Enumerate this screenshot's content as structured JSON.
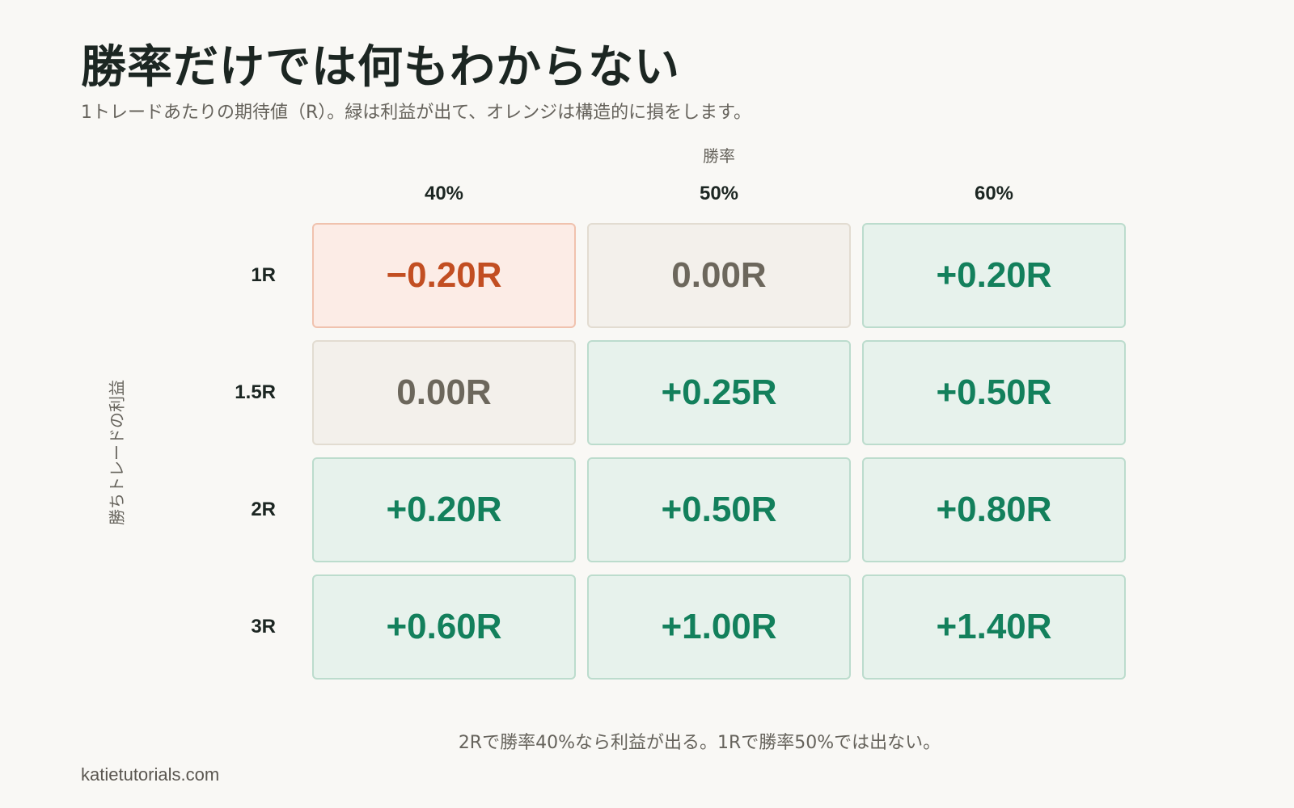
{
  "header": {
    "title": "勝率だけでは何もわからない",
    "subtitle": "1トレードあたりの期待値（R）。緑は利益が出て、オレンジは構造的に損をします。"
  },
  "chart_data": {
    "type": "heatmap",
    "title": "勝率だけでは何もわからない",
    "subtitle": "1トレードあたりの期待値（R）。緑は利益が出て、オレンジは構造的に損をします。",
    "xlabel": "勝率",
    "ylabel": "勝ちトレードの利益",
    "x_categories": [
      "40%",
      "50%",
      "60%"
    ],
    "y_categories": [
      "1R",
      "1.5R",
      "2R",
      "3R"
    ],
    "values": [
      [
        -0.2,
        0.0,
        0.2
      ],
      [
        0.0,
        0.25,
        0.5
      ],
      [
        0.2,
        0.5,
        0.8
      ],
      [
        0.6,
        1.0,
        1.4
      ]
    ],
    "cell_labels": [
      [
        "−0.20R",
        "0.00R",
        "+0.20R"
      ],
      [
        "0.00R",
        "+0.25R",
        "+0.50R"
      ],
      [
        "+0.20R",
        "+0.50R",
        "+0.80R"
      ],
      [
        "+0.60R",
        "+1.00R",
        "+1.40R"
      ]
    ],
    "colors": {
      "positive": "#13805c",
      "positive_bg": "#e7f2ec",
      "zero": "#6c675c",
      "zero_bg": "#f3f0eb",
      "negative": "#c24e22",
      "negative_bg": "#fcece6"
    }
  },
  "footer": {
    "note": "2Rで勝率40%なら利益が出る。1Rで勝率50%では出ない。",
    "source": "katietutorials.com"
  }
}
